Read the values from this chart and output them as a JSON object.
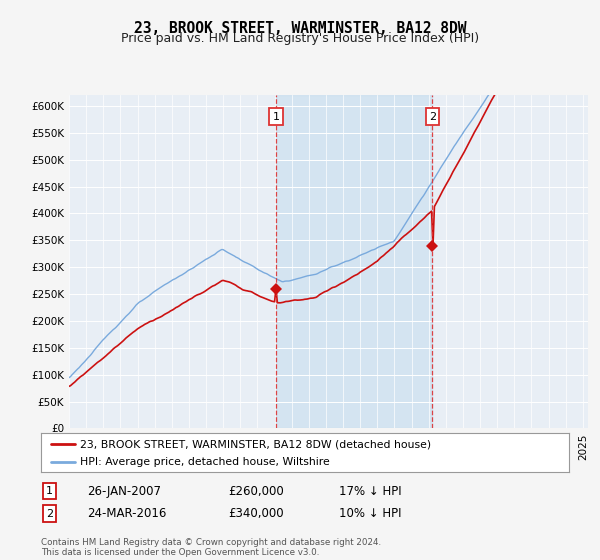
{
  "title": "23, BROOK STREET, WARMINSTER, BA12 8DW",
  "subtitle": "Price paid vs. HM Land Registry's House Price Index (HPI)",
  "legend_line1": "23, BROOK STREET, WARMINSTER, BA12 8DW (detached house)",
  "legend_line2": "HPI: Average price, detached house, Wiltshire",
  "annotation1_date": "26-JAN-2007",
  "annotation1_price": "£260,000",
  "annotation1_pct": "17% ↓ HPI",
  "annotation1_year": 2007.08,
  "annotation1_value": 260000,
  "annotation2_date": "24-MAR-2016",
  "annotation2_price": "£340,000",
  "annotation2_pct": "10% ↓ HPI",
  "annotation2_year": 2016.22,
  "annotation2_value": 340000,
  "hpi_color": "#7aaadd",
  "price_color": "#cc1111",
  "vline_color": "#dd3333",
  "shade_color": "#cce0f0",
  "bg_color": "#f5f5f5",
  "plot_bg": "#e8eef5",
  "ylim": [
    0,
    620000
  ],
  "yticks": [
    0,
    50000,
    100000,
    150000,
    200000,
    250000,
    300000,
    350000,
    400000,
    450000,
    500000,
    550000,
    600000
  ],
  "footer": "Contains HM Land Registry data © Crown copyright and database right 2024.\nThis data is licensed under the Open Government Licence v3.0.",
  "title_fontsize": 10.5,
  "subtitle_fontsize": 9
}
